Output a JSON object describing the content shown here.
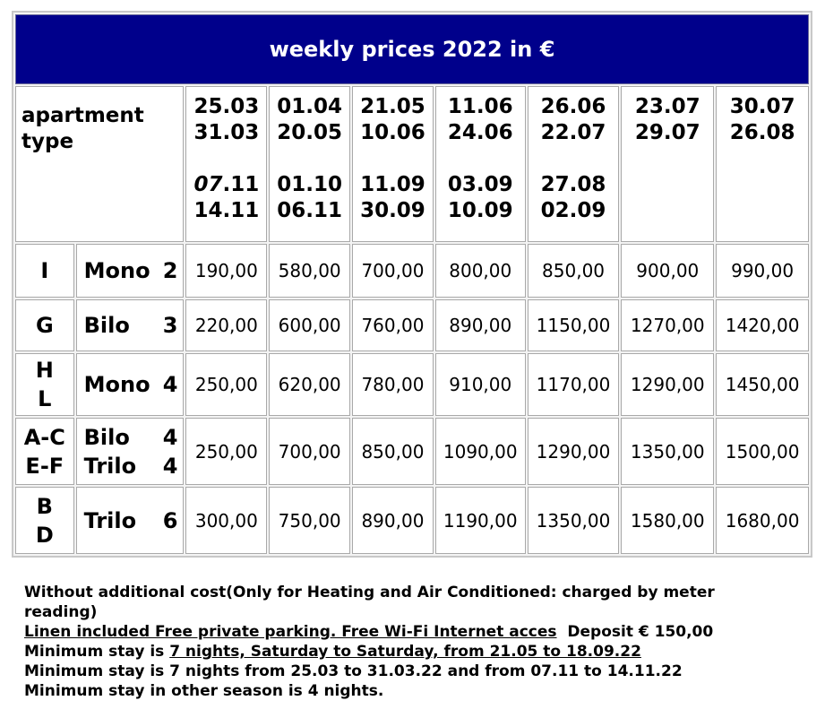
{
  "title": "weekly prices 2022 in €",
  "header": {
    "apartment_label_line1": "apartment",
    "apartment_label_line2": "type",
    "periods": [
      {
        "a1": "25.03",
        "a2": "31.03",
        "b1": "07.11",
        "b2": "14.11"
      },
      {
        "a1": "01.04",
        "a2": "20.05",
        "b1": "01.10",
        "b2": "06.11"
      },
      {
        "a1": "21.05",
        "a2": "10.06",
        "b1": "11.09",
        "b2": "30.09"
      },
      {
        "a1": "11.06",
        "a2": "24.06",
        "b1": "03.09",
        "b2": "10.09"
      },
      {
        "a1": "26.06",
        "a2": "22.07",
        "b1": "27.08",
        "b2": "02.09"
      },
      {
        "a1": "23.07",
        "a2": "29.07",
        "b1": "",
        "b2": ""
      },
      {
        "a1": "30.07",
        "a2": "26.08",
        "b1": "",
        "b2": ""
      }
    ]
  },
  "rows": [
    {
      "code1": "I",
      "code2": "",
      "type1_name": "Mono",
      "type1_num": "2",
      "type2_name": "",
      "type2_num": "",
      "prices": [
        "190,00",
        "580,00",
        "700,00",
        "800,00",
        "850,00",
        "900,00",
        "990,00"
      ]
    },
    {
      "code1": "G",
      "code2": "",
      "type1_name": "Bilo",
      "type1_num": "3",
      "type2_name": "",
      "type2_num": "",
      "prices": [
        "220,00",
        "600,00",
        "760,00",
        "890,00",
        "1150,00",
        "1270,00",
        "1420,00"
      ]
    },
    {
      "code1": "H",
      "code2": "L",
      "type1_name": "Mono",
      "type1_num": "4",
      "type2_name": "",
      "type2_num": "",
      "prices": [
        "250,00",
        "620,00",
        "780,00",
        "910,00",
        "1170,00",
        "1290,00",
        "1450,00"
      ]
    },
    {
      "code1": "A-C",
      "code2": "E-F",
      "type1_name": "Bilo",
      "type1_num": "4",
      "type2_name": "Trilo",
      "type2_num": "4",
      "prices": [
        "250,00",
        "700,00",
        "850,00",
        "1090,00",
        "1290,00",
        "1350,00",
        "1500,00"
      ]
    },
    {
      "code1": "B",
      "code2": "D",
      "type1_name": "Trilo",
      "type1_num": "6",
      "type2_name": "",
      "type2_num": "",
      "prices": [
        "300,00",
        "750,00",
        "890,00",
        "1190,00",
        "1350,00",
        "1580,00",
        "1680,00"
      ]
    }
  ],
  "notes": {
    "line1": "Without additional cost(Only for Heating and Air Conditioned: charged by meter",
    "line2": "reading)",
    "line3_underlined": "Linen included Free private parking. Free Wi-Fi Internet acces",
    "line3_rest": "  Deposit € 150,00",
    "line4_prefix": "Minimum stay is ",
    "line4_underlined": "7 nights, Saturday to Saturday, from 21.05 to 18.09.22",
    "line5": "Minimum stay is 7 nights from 25.03 to 31.03.22 and from 07.11 to 14.11.22",
    "line6": "Minimum stay in other season is 4 nights."
  }
}
